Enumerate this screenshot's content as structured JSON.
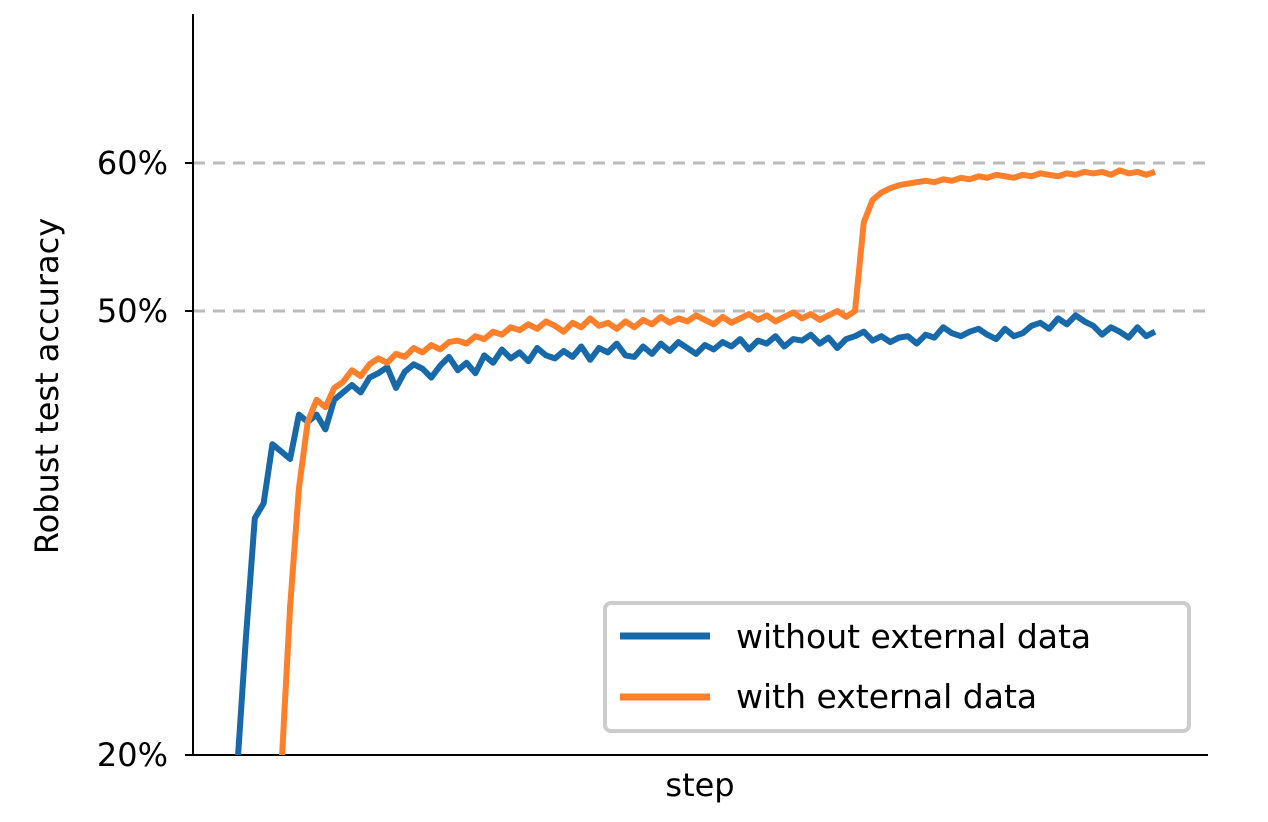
{
  "chart_data": {
    "type": "line",
    "title": "",
    "xlabel": "step",
    "ylabel": "Robust test accuracy",
    "x_ticks_shown": false,
    "y_ticks": [
      {
        "value": 20,
        "label": "20%"
      },
      {
        "value": 50,
        "label": "50%"
      },
      {
        "value": 60,
        "label": "60%"
      }
    ],
    "y_scale": "nonlinear (20%–50% compressed; 50%–60% and above linear)",
    "ylim": [
      20,
      70
    ],
    "xlim": [
      0,
      115
    ],
    "grid": "horizontal dashed at 50% and 60%",
    "legend_position": "bottom-right",
    "colors": {
      "without": "#1769aa",
      "with": "#ff7f2a",
      "grid": "#bbbbbb",
      "legend_border": "#cccccc"
    },
    "series": [
      {
        "key": "without",
        "name": "without external data",
        "color": "#1769aa",
        "points": [
          [
            5,
            19
          ],
          [
            6,
            28
          ],
          [
            7,
            36
          ],
          [
            8,
            37
          ],
          [
            9,
            41
          ],
          [
            10,
            40.5
          ],
          [
            11,
            40
          ],
          [
            12,
            43
          ],
          [
            13,
            42.5
          ],
          [
            14,
            43
          ],
          [
            15,
            42
          ],
          [
            16,
            44
          ],
          [
            17,
            44.5
          ],
          [
            18,
            45
          ],
          [
            19,
            44.5
          ],
          [
            20,
            45.5
          ],
          [
            21,
            45.8
          ],
          [
            22,
            46.2
          ],
          [
            23,
            44.8
          ],
          [
            24,
            45.9
          ],
          [
            25,
            46.4
          ],
          [
            26,
            46.1
          ],
          [
            27,
            45.5
          ],
          [
            28,
            46.3
          ],
          [
            29,
            46.9
          ],
          [
            30,
            46
          ],
          [
            31,
            46.5
          ],
          [
            32,
            45.8
          ],
          [
            33,
            47
          ],
          [
            34,
            46.5
          ],
          [
            35,
            47.4
          ],
          [
            36,
            46.8
          ],
          [
            37,
            47.2
          ],
          [
            38,
            46.6
          ],
          [
            39,
            47.5
          ],
          [
            40,
            47
          ],
          [
            41,
            46.8
          ],
          [
            42,
            47.3
          ],
          [
            43,
            46.9
          ],
          [
            44,
            47.6
          ],
          [
            45,
            46.7
          ],
          [
            46,
            47.5
          ],
          [
            47,
            47.2
          ],
          [
            48,
            47.8
          ],
          [
            49,
            47
          ],
          [
            50,
            46.9
          ],
          [
            51,
            47.6
          ],
          [
            52,
            47.1
          ],
          [
            53,
            47.8
          ],
          [
            54,
            47.3
          ],
          [
            55,
            47.9
          ],
          [
            56,
            47.5
          ],
          [
            57,
            47.1
          ],
          [
            58,
            47.7
          ],
          [
            59,
            47.4
          ],
          [
            60,
            47.9
          ],
          [
            61,
            47.6
          ],
          [
            62,
            48.1
          ],
          [
            63,
            47.4
          ],
          [
            64,
            48
          ],
          [
            65,
            47.8
          ],
          [
            66,
            48.3
          ],
          [
            67,
            47.6
          ],
          [
            68,
            48.1
          ],
          [
            69,
            48
          ],
          [
            70,
            48.4
          ],
          [
            71,
            47.8
          ],
          [
            72,
            48.2
          ],
          [
            73,
            47.5
          ],
          [
            74,
            48.1
          ],
          [
            75,
            48.3
          ],
          [
            76,
            48.6
          ],
          [
            77,
            48
          ],
          [
            78,
            48.3
          ],
          [
            79,
            47.9
          ],
          [
            80,
            48.2
          ],
          [
            81,
            48.3
          ],
          [
            82,
            47.8
          ],
          [
            83,
            48.4
          ],
          [
            84,
            48.2
          ],
          [
            85,
            48.9
          ],
          [
            86,
            48.5
          ],
          [
            87,
            48.3
          ],
          [
            88,
            48.6
          ],
          [
            89,
            48.8
          ],
          [
            90,
            48.4
          ],
          [
            91,
            48.1
          ],
          [
            92,
            48.8
          ],
          [
            93,
            48.3
          ],
          [
            94,
            48.5
          ],
          [
            95,
            49
          ],
          [
            96,
            49.2
          ],
          [
            97,
            48.8
          ],
          [
            98,
            49.5
          ],
          [
            99,
            49.1
          ],
          [
            100,
            49.7
          ],
          [
            101,
            49.3
          ],
          [
            102,
            49
          ],
          [
            103,
            48.4
          ],
          [
            104,
            48.9
          ],
          [
            105,
            48.6
          ],
          [
            106,
            48.2
          ],
          [
            107,
            48.9
          ],
          [
            108,
            48.3
          ],
          [
            109,
            48.6
          ]
        ]
      },
      {
        "key": "with",
        "name": "with external data",
        "color": "#ff7f2a",
        "points": [
          [
            10,
            19
          ],
          [
            11,
            30
          ],
          [
            12,
            38
          ],
          [
            13,
            42.5
          ],
          [
            14,
            44
          ],
          [
            15,
            43.5
          ],
          [
            16,
            44.8
          ],
          [
            17,
            45.2
          ],
          [
            18,
            46
          ],
          [
            19,
            45.6
          ],
          [
            20,
            46.4
          ],
          [
            21,
            46.8
          ],
          [
            22,
            46.5
          ],
          [
            23,
            47.1
          ],
          [
            24,
            46.9
          ],
          [
            25,
            47.5
          ],
          [
            26,
            47.2
          ],
          [
            27,
            47.7
          ],
          [
            28,
            47.4
          ],
          [
            29,
            47.9
          ],
          [
            30,
            48
          ],
          [
            31,
            47.8
          ],
          [
            32,
            48.3
          ],
          [
            33,
            48.1
          ],
          [
            34,
            48.6
          ],
          [
            35,
            48.4
          ],
          [
            36,
            48.9
          ],
          [
            37,
            48.7
          ],
          [
            38,
            49.1
          ],
          [
            39,
            48.8
          ],
          [
            40,
            49.3
          ],
          [
            41,
            49
          ],
          [
            42,
            48.6
          ],
          [
            43,
            49.2
          ],
          [
            44,
            48.9
          ],
          [
            45,
            49.5
          ],
          [
            46,
            49
          ],
          [
            47,
            49.2
          ],
          [
            48,
            48.8
          ],
          [
            49,
            49.3
          ],
          [
            50,
            48.9
          ],
          [
            51,
            49.4
          ],
          [
            52,
            49.1
          ],
          [
            53,
            49.6
          ],
          [
            54,
            49.2
          ],
          [
            55,
            49.5
          ],
          [
            56,
            49.3
          ],
          [
            57,
            49.7
          ],
          [
            58,
            49.4
          ],
          [
            59,
            49.1
          ],
          [
            60,
            49.6
          ],
          [
            61,
            49.2
          ],
          [
            62,
            49.5
          ],
          [
            63,
            49.8
          ],
          [
            64,
            49.4
          ],
          [
            65,
            49.7
          ],
          [
            66,
            49.3
          ],
          [
            67,
            49.6
          ],
          [
            68,
            49.9
          ],
          [
            69,
            49.5
          ],
          [
            70,
            49.8
          ],
          [
            71,
            49.4
          ],
          [
            72,
            49.7
          ],
          [
            73,
            50
          ],
          [
            74,
            49.6
          ],
          [
            75,
            50
          ],
          [
            76,
            56
          ],
          [
            77,
            57.5
          ],
          [
            78,
            58
          ],
          [
            79,
            58.3
          ],
          [
            80,
            58.5
          ],
          [
            81,
            58.6
          ],
          [
            82,
            58.7
          ],
          [
            83,
            58.8
          ],
          [
            84,
            58.7
          ],
          [
            85,
            58.9
          ],
          [
            86,
            58.8
          ],
          [
            87,
            59
          ],
          [
            88,
            58.9
          ],
          [
            89,
            59.1
          ],
          [
            90,
            59
          ],
          [
            91,
            59.2
          ],
          [
            92,
            59.1
          ],
          [
            93,
            59
          ],
          [
            94,
            59.2
          ],
          [
            95,
            59.1
          ],
          [
            96,
            59.3
          ],
          [
            97,
            59.2
          ],
          [
            98,
            59.1
          ],
          [
            99,
            59.3
          ],
          [
            100,
            59.2
          ],
          [
            101,
            59.4
          ],
          [
            102,
            59.3
          ],
          [
            103,
            59.4
          ],
          [
            104,
            59.2
          ],
          [
            105,
            59.5
          ],
          [
            106,
            59.3
          ],
          [
            107,
            59.4
          ],
          [
            108,
            59.2
          ],
          [
            109,
            59.4
          ]
        ]
      }
    ]
  }
}
